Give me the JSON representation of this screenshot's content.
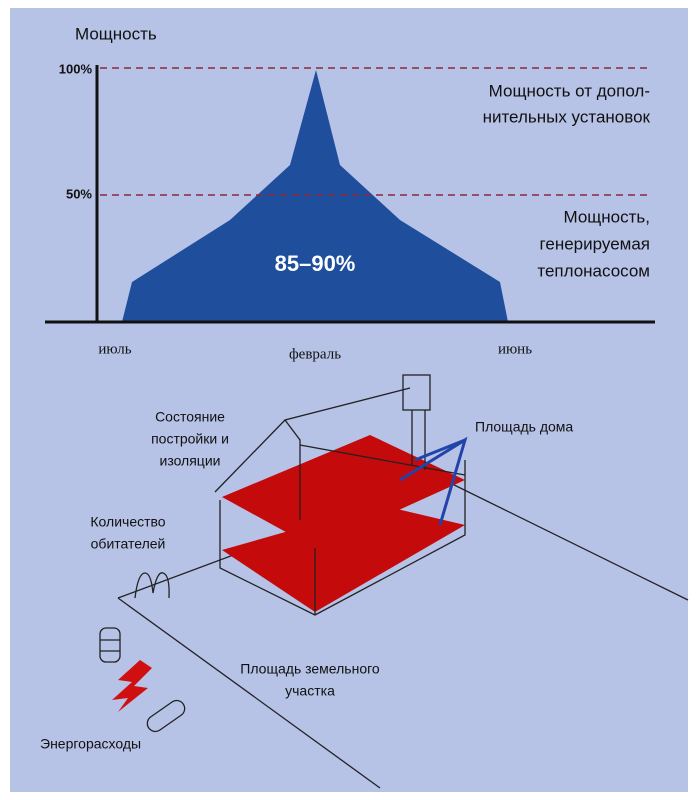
{
  "power_chart": {
    "y_axis_label": "Мощность",
    "ticks": [
      "100%",
      "50%"
    ],
    "months": [
      "июль",
      "февраль",
      "июнь"
    ],
    "share_label": "85–90%",
    "supplementary_label": [
      "Мощность от допол-",
      "нительных установок"
    ],
    "heat_pump_label": [
      "Мощность,",
      "генерируемая",
      "теплонасосом"
    ]
  },
  "house_diagram": {
    "construction_label": [
      "Состояние",
      "постройки и",
      "изоляции"
    ],
    "house_area_label": "Площадь дома",
    "occupants_label": [
      "Количество",
      "обитателей"
    ],
    "plot_area_label": [
      "Площадь земельного",
      "участка"
    ],
    "energy_label": "Энергорасходы"
  }
}
